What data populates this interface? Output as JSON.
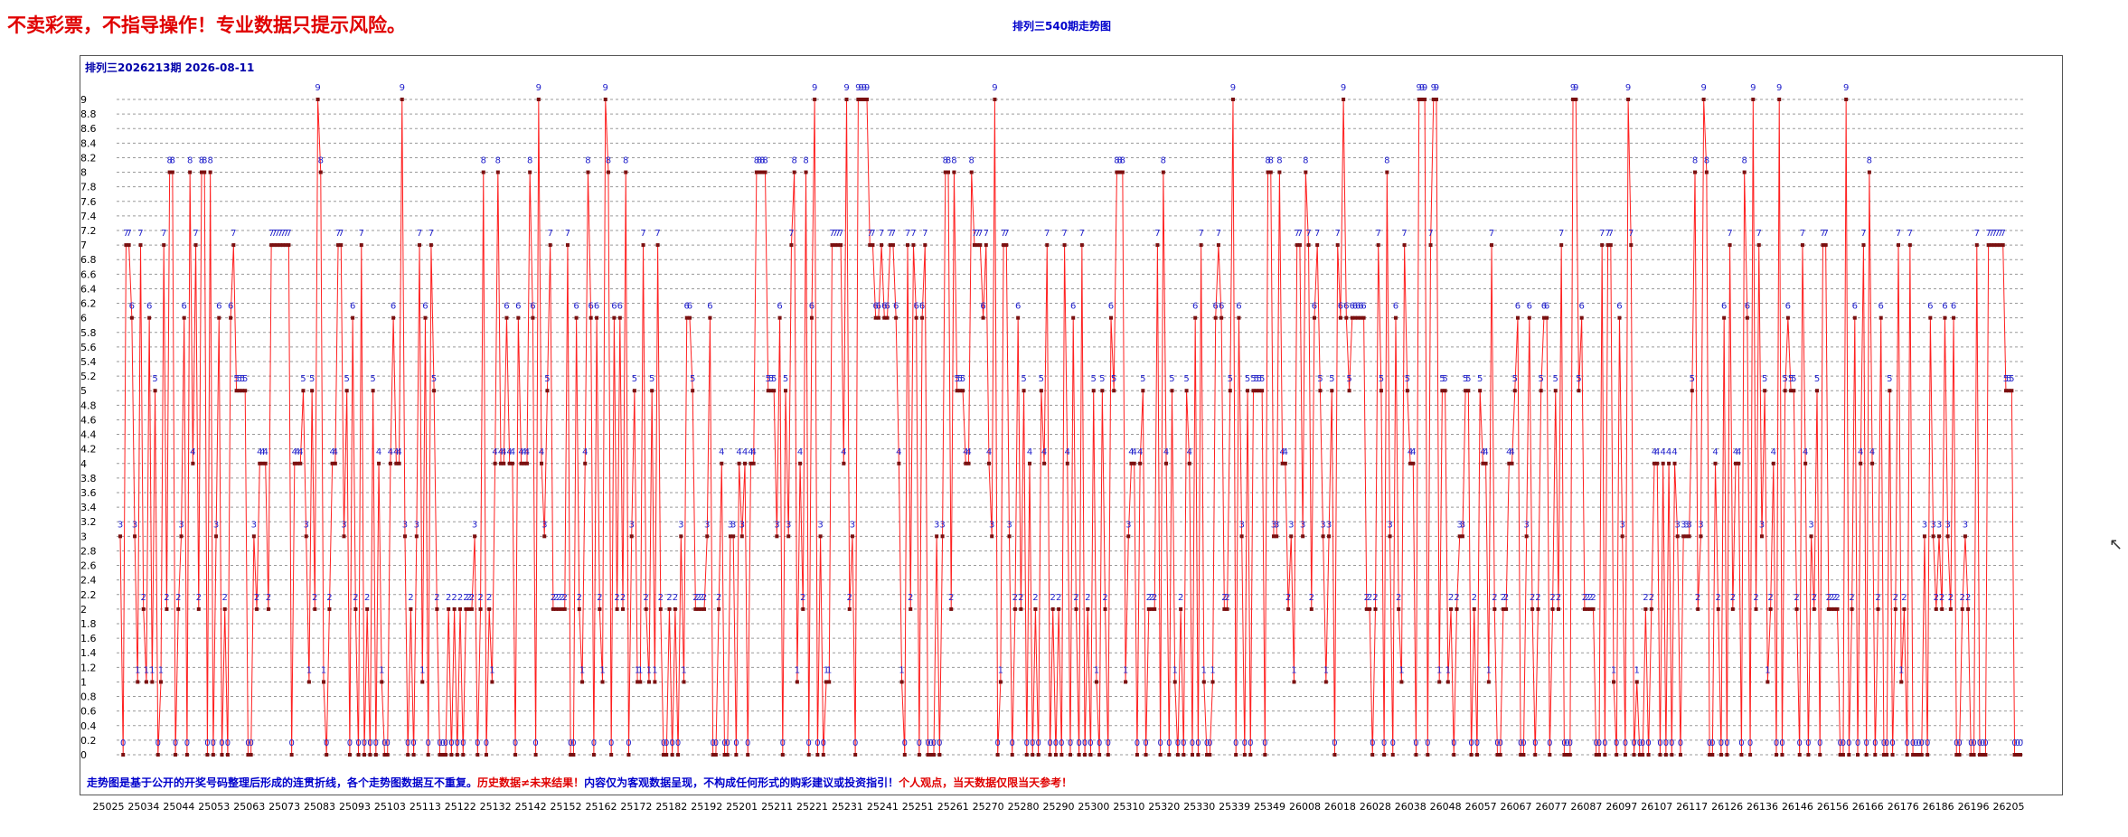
{
  "warning": "不卖彩票，不指导操作！专业数据只提示风险。",
  "chart_title": "排列三540期走势图",
  "issue_label": "排列三2026213期 2026-08-11",
  "footer_note": {
    "part1": "走势图是基于公开的开奖号码整理后形成的连贯折线，各个走势图数据互不重复。",
    "part2": "历史数据≠未来结果！",
    "part3": "内容仅为客观数据呈现，不构成任何形式的购彩建议或投资指引！",
    "part4": "个人观点，当天数据仅限当天参考！"
  },
  "cursor_icon": "mouse-pointer-icon",
  "colors": {
    "line": "#ff2020",
    "point": "#7a1010",
    "label": "#2020cc",
    "warning": "#e00000",
    "title": "#0000cc"
  },
  "chart_data": {
    "type": "line",
    "title": "排列三540期走势图",
    "ylim": [
      0,
      9.2
    ],
    "yticks": [
      "0",
      "0.2",
      "0.4",
      "0.6",
      "0.8",
      "1",
      "1.2",
      "1.4",
      "1.6",
      "1.8",
      "2",
      "2.2",
      "2.4",
      "2.6",
      "2.8",
      "3",
      "3.2",
      "3.4",
      "3.6",
      "3.8",
      "4",
      "4.2",
      "4.4",
      "4.6",
      "4.8",
      "5",
      "5.2",
      "5.4",
      "5.6",
      "5.8",
      "6",
      "6.2",
      "6.4",
      "6.6",
      "6.8",
      "7",
      "7.2",
      "7.4",
      "7.6",
      "7.8",
      "8",
      "8.2",
      "8.4",
      "8.6",
      "8.8",
      "9"
    ],
    "xticks": [
      "25025",
      "25034",
      "25044",
      "25053",
      "25063",
      "25073",
      "25083",
      "25093",
      "25103",
      "25113",
      "25122",
      "25132",
      "25142",
      "25152",
      "25162",
      "25172",
      "25182",
      "25192",
      "25201",
      "25211",
      "25221",
      "25231",
      "25241",
      "25251",
      "25261",
      "25270",
      "25280",
      "25290",
      "25300",
      "25310",
      "25320",
      "25330",
      "25339",
      "25349",
      "26008",
      "26018",
      "26028",
      "26038",
      "26048",
      "26057",
      "26067",
      "26077",
      "26087",
      "26097",
      "26107",
      "26117",
      "26126",
      "26136",
      "26146",
      "26156",
      "26166",
      "26176",
      "26186",
      "26196",
      "26205"
    ],
    "grid": true,
    "legend": "none",
    "series": [
      {
        "values": [
          3,
          0,
          7,
          7,
          6,
          3,
          1,
          7,
          2,
          1,
          6,
          1,
          5,
          0,
          1,
          7,
          2,
          8,
          8,
          0,
          2,
          3,
          6,
          0,
          8,
          4,
          7,
          2,
          8,
          8,
          0,
          8,
          0,
          3,
          6,
          0,
          2,
          0,
          6,
          7,
          5,
          5,
          5,
          5,
          0,
          0,
          3,
          2,
          4,
          4,
          4,
          2,
          7,
          7,
          7,
          7,
          7,
          7,
          7,
          0,
          4,
          4,
          4,
          5,
          3,
          1,
          5,
          2,
          9,
          8,
          1,
          0,
          2,
          4,
          4,
          7,
          7,
          3,
          5,
          0,
          6,
          2,
          0,
          7,
          0,
          2,
          0,
          5,
          0,
          4,
          1,
          0,
          0,
          4,
          6,
          4,
          4,
          9,
          3,
          0,
          2,
          0,
          3,
          7,
          1,
          6,
          0,
          7,
          5,
          2,
          0,
          0,
          0,
          2,
          0,
          2,
          0,
          2,
          0,
          2,
          2,
          2,
          3,
          0,
          2,
          8,
          0,
          2,
          1,
          4,
          8,
          4,
          4,
          6,
          4,
          4,
          0,
          6,
          4,
          4,
          4,
          8,
          6,
          0,
          9,
          4,
          3,
          5,
          7,
          2,
          2,
          2,
          2,
          2,
          7,
          0,
          0,
          6,
          2,
          1,
          4,
          8,
          6,
          0,
          6,
          2,
          1,
          9,
          8,
          0,
          6,
          2,
          6,
          2,
          8,
          0,
          3,
          5,
          1,
          1,
          7,
          2,
          1,
          5,
          1,
          7,
          2,
          0,
          0,
          2,
          0,
          2,
          0,
          3,
          1,
          6,
          6,
          5,
          2,
          2,
          2,
          2,
          3,
          6,
          0,
          0,
          2,
          4,
          0,
          0,
          3,
          3,
          0,
          4,
          3,
          4,
          0,
          4,
          4,
          8,
          8,
          8,
          8,
          5,
          5,
          5,
          3,
          6,
          0,
          5,
          3,
          7,
          8,
          1,
          4,
          2,
          8,
          0,
          6,
          9,
          0,
          3,
          0,
          1,
          1,
          7,
          7,
          7,
          7,
          4,
          9,
          2,
          3,
          0,
          9,
          9,
          9,
          9,
          7,
          7,
          6,
          6,
          7,
          6,
          6,
          7,
          7,
          6,
          4,
          1,
          0,
          7,
          2,
          7,
          6,
          0,
          6,
          7,
          0,
          0,
          0,
          3,
          0,
          3,
          8,
          8,
          2,
          8,
          5,
          5,
          5,
          4,
          4,
          8,
          7,
          7,
          7,
          6,
          7,
          4,
          3,
          9,
          0,
          1,
          7,
          7,
          3,
          0,
          2,
          6,
          2,
          5,
          0,
          4,
          0,
          2,
          0,
          5,
          4,
          7,
          0,
          2,
          0,
          2,
          0,
          7,
          4,
          0,
          6,
          2,
          0,
          7,
          0,
          2,
          0,
          5,
          1,
          0,
          5,
          2,
          0,
          6,
          5,
          8,
          8,
          8,
          1,
          3,
          4,
          4,
          0,
          4,
          5,
          0,
          2,
          2,
          2,
          7,
          0,
          8,
          4,
          0,
          5,
          1,
          0,
          2,
          0,
          5,
          4,
          0,
          6,
          0,
          7,
          1,
          0,
          0,
          1,
          6,
          7,
          6,
          2,
          2,
          5,
          9,
          0,
          6,
          3,
          0,
          5,
          0,
          5,
          5,
          5,
          5,
          0,
          8,
          8,
          3,
          3,
          8,
          4,
          4,
          2,
          3,
          1,
          7,
          7,
          3,
          8,
          7,
          2,
          6,
          7,
          5,
          3,
          1,
          3,
          5,
          0,
          7,
          6,
          9,
          6,
          5,
          6,
          6,
          6,
          6,
          6,
          2,
          2,
          0,
          2,
          7,
          5,
          0,
          8,
          3,
          0,
          6,
          2,
          1,
          7,
          5,
          4,
          4,
          0,
          9,
          9,
          9,
          0,
          7,
          9,
          9,
          1,
          5,
          5,
          1,
          2,
          0,
          2,
          3,
          3,
          5,
          5,
          0,
          2,
          0,
          5,
          4,
          4,
          1,
          7,
          2,
          0,
          0,
          2,
          2,
          4,
          4,
          5,
          6,
          0,
          0,
          3,
          6,
          2,
          0,
          2,
          5,
          6,
          6,
          0,
          2,
          5,
          2,
          7,
          0,
          0,
          0,
          9,
          9,
          5,
          6,
          2,
          2,
          2,
          2,
          0,
          0,
          7,
          0,
          7,
          7,
          1,
          0,
          6,
          3,
          0,
          9,
          7,
          0,
          1,
          0,
          0,
          2,
          0,
          2,
          4,
          4,
          0,
          4,
          0,
          4,
          0,
          4,
          3,
          0,
          3,
          3,
          3,
          5,
          8,
          2,
          3,
          9,
          8,
          0,
          0,
          4,
          2,
          0,
          6,
          0,
          7,
          2,
          4,
          4,
          0,
          8,
          6,
          0,
          9,
          2,
          7,
          3,
          5,
          1,
          2,
          4,
          0,
          9,
          0,
          5,
          6,
          5,
          5,
          2,
          0,
          7,
          4,
          0,
          3,
          2,
          5,
          0,
          7,
          7,
          2,
          2,
          2,
          2,
          0,
          0,
          9,
          0,
          2,
          6,
          0,
          4,
          7,
          0,
          8,
          4,
          0,
          2,
          6,
          0,
          0,
          5,
          0,
          2,
          7,
          1,
          2,
          0,
          7,
          0,
          0,
          0,
          0,
          3,
          0,
          6,
          3,
          2,
          3,
          2,
          6,
          3,
          2,
          6,
          0,
          0,
          2,
          3,
          2,
          0,
          0,
          7,
          0,
          0,
          0,
          7,
          7,
          7,
          7,
          7,
          7,
          5,
          5,
          5,
          0,
          0,
          0
        ]
      }
    ]
  }
}
